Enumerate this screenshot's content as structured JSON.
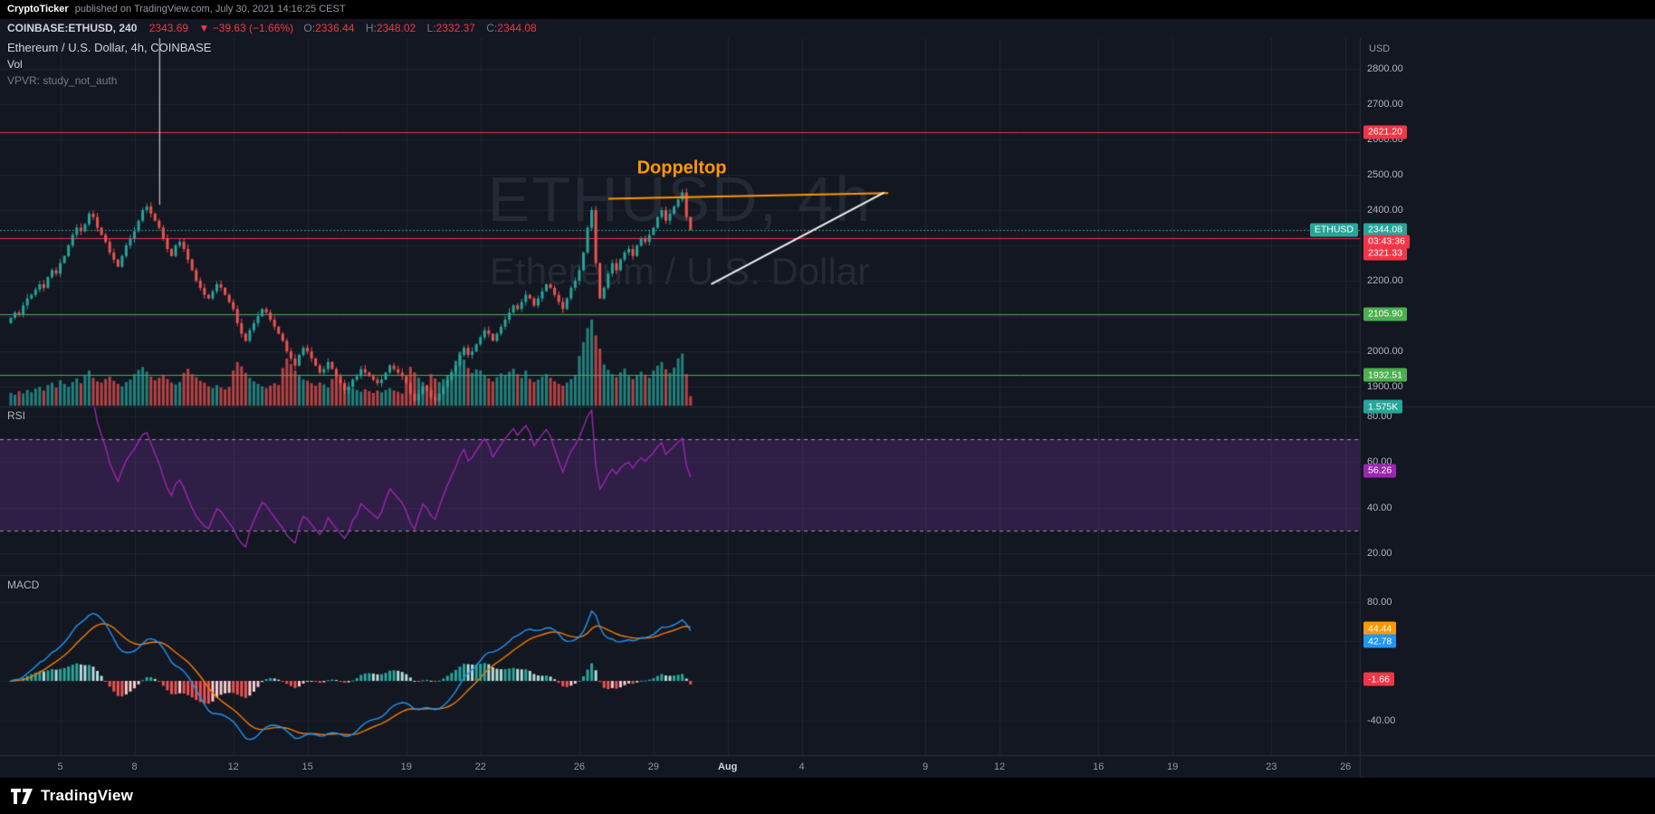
{
  "colors": {
    "background": "#131722",
    "grid": "rgba(42,46,57,0.6)",
    "separator": "#2a2e39",
    "up": "#26a69a",
    "down": "#ef5350",
    "red_line": "#f23645",
    "green_line": "#4caf50",
    "rsi_line": "#9c27b0",
    "rsi_band": "rgba(123,49,163,0.28)",
    "macd_line": "#2196f3",
    "signal_line": "#f57c00",
    "hist_up_grow": "#26a69a",
    "hist_up_fall": "#b2dfdb",
    "hist_dn_grow": "#ef5350",
    "hist_dn_fall": "#fccbcd",
    "annotation_orange": "#ff9800",
    "annotation_white": "#ffffff"
  },
  "attribution": {
    "author": "CryptoTicker",
    "rest": "published on TradingView.com, July 30, 2021 14:16:25 CEST"
  },
  "symbol_bar": {
    "symbol": "COINBASE:ETHUSD, 240",
    "last": "2343.69",
    "change": "▼ −39.63 (−1.66%)",
    "o_label": "O:",
    "o": "2336.44",
    "h_label": "H:",
    "h": "2348.02",
    "l_label": "L:",
    "l": "2332.37",
    "c_label": "C:",
    "c": "2344.08"
  },
  "legend": {
    "title": "Ethereum / U.S. Dollar, 4h, COINBASE",
    "vol": "Vol",
    "vpvr": "VPVR: study_not_auth"
  },
  "watermark": {
    "line1": "ETHUSD, 4h",
    "line2": "Ethereum / U.S. Dollar"
  },
  "footer": {
    "brand": "TradingView"
  },
  "chart_data": {
    "type": "candlestick",
    "symbol": "COINBASE:ETHUSD",
    "interval": "4h",
    "start_date": "2021-07-03",
    "panes": [
      "price+volume",
      "RSI",
      "MACD"
    ],
    "price_axis": {
      "currency": "USD",
      "ticks": [
        {
          "v": 2800,
          "t": "2800.00"
        },
        {
          "v": 2700,
          "t": "2700.00"
        },
        {
          "v": 2600,
          "t": "2600.00"
        },
        {
          "v": 2500,
          "t": "2500.00"
        },
        {
          "v": 2400,
          "t": "2400.00"
        },
        {
          "v": 2200,
          "t": "2200.00"
        },
        {
          "v": 2000,
          "t": "2000.00"
        },
        {
          "v": 1900,
          "t": "1900.00"
        }
      ]
    },
    "time_labels": [
      {
        "t": "5",
        "d": 2
      },
      {
        "t": "8",
        "d": 5
      },
      {
        "t": "12",
        "d": 9
      },
      {
        "t": "15",
        "d": 12
      },
      {
        "t": "19",
        "d": 16
      },
      {
        "t": "22",
        "d": 19
      },
      {
        "t": "26",
        "d": 23
      },
      {
        "t": "29",
        "d": 26
      },
      {
        "t": "Aug",
        "d": 29,
        "major": true
      },
      {
        "t": "4",
        "d": 32
      },
      {
        "t": "9",
        "d": 37
      },
      {
        "t": "12",
        "d": 40
      },
      {
        "t": "16",
        "d": 44
      },
      {
        "t": "19",
        "d": 47
      },
      {
        "t": "23",
        "d": 51
      },
      {
        "t": "26",
        "d": 54
      }
    ],
    "candles": {
      "closes": [
        2095,
        2110,
        2105,
        2130,
        2150,
        2160,
        2175,
        2190,
        2180,
        2210,
        2230,
        2220,
        2250,
        2270,
        2300,
        2330,
        2350,
        2340,
        2360,
        2390,
        2380,
        2350,
        2330,
        2310,
        2280,
        2260,
        2240,
        2270,
        2300,
        2320,
        2340,
        2370,
        2400,
        2410,
        2390,
        2370,
        2350,
        2320,
        2290,
        2270,
        2300,
        2310,
        2290,
        2260,
        2230,
        2200,
        2180,
        2160,
        2150,
        2170,
        2190,
        2180,
        2160,
        2140,
        2120,
        2080,
        2050,
        2030,
        2060,
        2080,
        2100,
        2120,
        2110,
        2090,
        2070,
        2050,
        2030,
        2000,
        1980,
        1960,
        1990,
        2010,
        2000,
        1980,
        1960,
        1940,
        1950,
        1970,
        1950,
        1930,
        1910,
        1890,
        1900,
        1920,
        1930,
        1950,
        1940,
        1930,
        1920,
        1910,
        1920,
        1940,
        1960,
        1950,
        1940,
        1930,
        1910,
        1880,
        1860,
        1880,
        1900,
        1890,
        1870,
        1860,
        1880,
        1900,
        1920,
        1940,
        1960,
        1990,
        2010,
        1990,
        2000,
        2020,
        2040,
        2060,
        2050,
        2030,
        2050,
        2070,
        2090,
        2110,
        2130,
        2120,
        2140,
        2160,
        2150,
        2130,
        2150,
        2170,
        2190,
        2180,
        2160,
        2140,
        2120,
        2150,
        2180,
        2200,
        2230,
        2280,
        2350,
        2400,
        2250,
        2150,
        2180,
        2220,
        2250,
        2230,
        2260,
        2280,
        2290,
        2270,
        2300,
        2320,
        2310,
        2330,
        2350,
        2380,
        2400,
        2370,
        2390,
        2410,
        2430,
        2450,
        2380,
        2344.08
      ],
      "volumes_k": [
        2.1,
        1.8,
        2.4,
        2.0,
        2.6,
        2.2,
        2.8,
        3.1,
        2.5,
        3.4,
        3.8,
        3.0,
        4.2,
        3.6,
        3.1,
        3.9,
        4.5,
        3.7,
        5.1,
        5.8,
        4.6,
        4.0,
        3.8,
        4.4,
        4.8,
        4.1,
        3.6,
        3.2,
        3.9,
        4.3,
        5.2,
        5.9,
        6.4,
        5.6,
        4.8,
        4.2,
        4.6,
        5.1,
        4.4,
        3.8,
        3.5,
        3.9,
        5.4,
        6.1,
        5.2,
        4.7,
        4.1,
        3.8,
        3.2,
        2.9,
        3.4,
        3.0,
        2.7,
        3.1,
        5.8,
        7.2,
        6.5,
        5.4,
        4.6,
        4.0,
        3.6,
        3.2,
        2.9,
        3.3,
        3.7,
        3.4,
        6.2,
        7.8,
        6.9,
        5.8,
        4.9,
        4.3,
        4.1,
        3.7,
        3.3,
        3.8,
        3.5,
        3.0,
        4.4,
        5.0,
        4.2,
        3.6,
        3.2,
        2.9,
        2.6,
        2.3,
        2.7,
        2.4,
        2.1,
        2.5,
        2.2,
        2.6,
        2.9,
        2.5,
        2.3,
        2.0,
        4.8,
        6.4,
        5.5,
        4.6,
        3.9,
        3.4,
        5.2,
        4.5,
        3.9,
        4.4,
        5.0,
        5.6,
        7.4,
        8.9,
        7.6,
        6.2,
        5.4,
        6.0,
        5.8,
        5.1,
        4.5,
        4.0,
        4.7,
        5.3,
        5.0,
        5.6,
        6.1,
        5.2,
        4.6,
        5.8,
        4.4,
        3.9,
        4.3,
        4.8,
        5.2,
        4.6,
        4.0,
        3.6,
        3.3,
        3.8,
        4.4,
        4.9,
        8.2,
        10.5,
        12.8,
        14.2,
        11.6,
        9.4,
        6.8,
        5.9,
        5.2,
        4.7,
        5.5,
        6.1,
        4.9,
        4.4,
        5.0,
        5.6,
        5.1,
        4.6,
        5.8,
        6.6,
        7.2,
        6.0,
        5.4,
        6.3,
        7.8,
        8.6,
        5.2,
        1.575
      ]
    },
    "price_lines": [
      {
        "value": 2621.2,
        "label": "2621.20",
        "color": "#f23645"
      },
      {
        "value": 2321.33,
        "label": "2321.33",
        "color": "#f23645"
      },
      {
        "value": 2105.9,
        "label": "2105.90",
        "color": "#4caf50"
      },
      {
        "value": 1932.51,
        "label": "1932.51",
        "color": "#4caf50"
      }
    ],
    "last_price": {
      "tag": "ETHUSD",
      "value": 2344.08,
      "label": "2344.08",
      "countdown": "03:43:36",
      "color": "#26a69a",
      "countdown_color": "#f23645"
    },
    "volume_axis_label": {
      "text": "1.575K",
      "color": "#26a69a"
    },
    "annotations": {
      "doppeltop_text": "Doppeltop",
      "doppeltop_line": {
        "i1": 145,
        "p1": 2432,
        "i2": 213,
        "p2": 2448
      },
      "trend_line": {
        "i1": 170,
        "p1": 2190,
        "i2": 212,
        "p2": 2450
      },
      "vertical_line": {
        "i": 36,
        "p_to": 2415
      }
    },
    "rsi": {
      "label": "RSI",
      "period": 14,
      "last": "56.26",
      "levels": [
        70,
        30
      ],
      "ticks": [
        {
          "v": 80,
          "t": "80.00"
        },
        {
          "v": 60,
          "t": "60.00"
        },
        {
          "v": 40,
          "t": "40.00"
        },
        {
          "v": 20,
          "t": "20.00"
        }
      ]
    },
    "macd": {
      "label": "MACD",
      "fast": 12,
      "slow": 26,
      "smoothing": 9,
      "signal_last": "44.44",
      "macd_last": "42.78",
      "hist_last": "-1.66",
      "ticks": [
        {
          "v": 80,
          "t": "80.00"
        },
        {
          "v": -40,
          "t": "-40.00"
        }
      ]
    }
  }
}
